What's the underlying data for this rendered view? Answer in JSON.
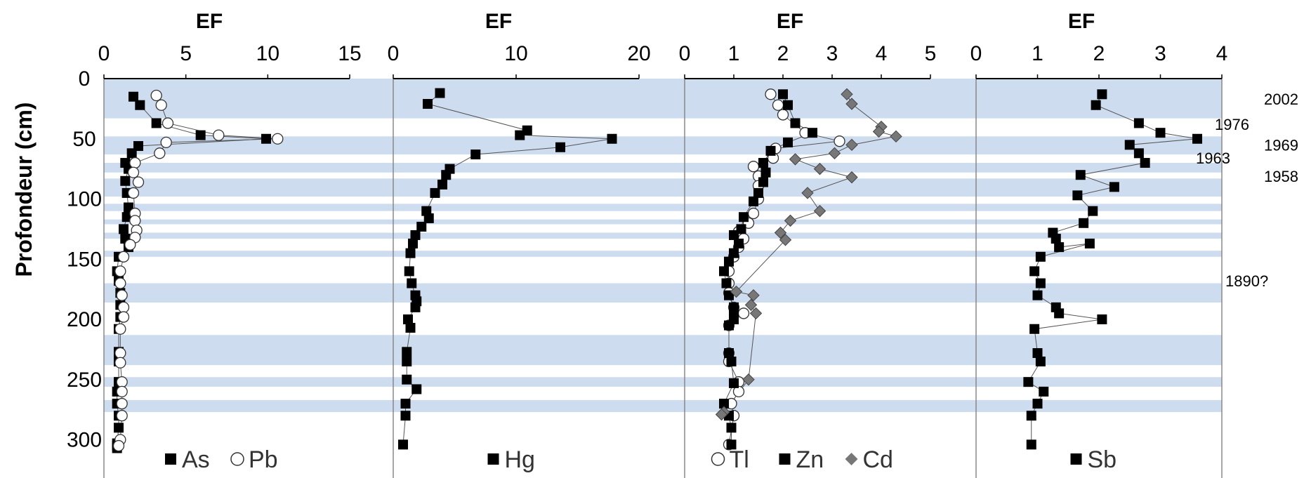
{
  "chart_data": {
    "type": "scatter",
    "ylabel": "Profondeur (cm)",
    "yticks": [
      0,
      50,
      100,
      150,
      200,
      250,
      300
    ],
    "ylim": [
      0,
      310
    ],
    "y_inverted": true,
    "bands_cm": [
      [
        0,
        33
      ],
      [
        48,
        63
      ],
      [
        70,
        78
      ],
      [
        83,
        98
      ],
      [
        104,
        110
      ],
      [
        117,
        121
      ],
      [
        128,
        133
      ],
      [
        143,
        148
      ],
      [
        170,
        186
      ],
      [
        213,
        238
      ],
      [
        248,
        256
      ],
      [
        267,
        277
      ]
    ],
    "date_labels": [
      {
        "text": "2002",
        "depth": 17
      },
      {
        "text": "1976",
        "depth": 38
      },
      {
        "text": "1969",
        "depth": 55
      },
      {
        "text": "1963",
        "depth": 66
      },
      {
        "text": "1958",
        "depth": 81
      },
      {
        "text": "1890?",
        "depth": 168
      }
    ],
    "panels": [
      {
        "xlabel": "EF",
        "xlim": [
          0,
          15
        ],
        "xticks": [
          0,
          5,
          10,
          15
        ],
        "series": [
          {
            "name": "As",
            "marker": "square",
            "color": "#000000",
            "x": [
              1.8,
              2.2,
              3.2,
              5.9,
              9.9,
              2.1,
              1.7,
              1.3,
              1.5,
              1.3,
              1.4,
              1.5,
              1.4,
              1.2,
              1.3,
              1.5,
              0.9,
              0.8,
              0.9,
              1.0,
              1.0,
              1.0,
              0.9,
              0.9,
              0.9,
              0.9,
              0.8,
              0.8,
              0.9,
              0.9,
              0.8,
              0.8,
              0.8
            ],
            "y": [
              15,
              22,
              37,
              47,
              50,
              56,
              62,
              70,
              75,
              85,
              95,
              107,
              115,
              125,
              133,
              140,
              148,
              160,
              168,
              178,
              188,
              198,
              208,
              227,
              235,
              252,
              260,
              270,
              280,
              290,
              303,
              305,
              307
            ]
          },
          {
            "name": "Pb",
            "marker": "circle",
            "color": "#ffffff",
            "x": [
              3.2,
              3.5,
              3.9,
              7.0,
              10.6,
              3.8,
              3.4,
              1.9,
              1.8,
              2.1,
              1.8,
              1.9,
              1.9,
              2.0,
              1.9,
              1.6,
              1.2,
              1.0,
              1.0,
              1.1,
              1.2,
              1.2,
              1.0,
              1.0,
              1.0,
              1.1,
              1.1,
              1.1,
              1.1,
              1.0,
              0.9
            ],
            "y": [
              14,
              22,
              37,
              47,
              50,
              53,
              62,
              70,
              78,
              86,
              95,
              112,
              118,
              126,
              132,
              138,
              148,
              160,
              170,
              180,
              190,
              198,
              208,
              228,
              236,
              252,
              260,
              270,
              280,
              300,
              305
            ]
          }
        ]
      },
      {
        "xlabel": "EF",
        "xlim": [
          0,
          20
        ],
        "xticks": [
          0,
          10,
          20
        ],
        "series": [
          {
            "name": "Hg",
            "marker": "square",
            "color": "#000000",
            "x": [
              3.8,
              2.8,
              10.9,
              10.3,
              17.8,
              13.6,
              6.7,
              4.6,
              4.3,
              4.0,
              3.4,
              2.7,
              2.9,
              2.3,
              1.8,
              1.6,
              1.4,
              1.3,
              1.5,
              1.8,
              1.9,
              1.8,
              1.2,
              1.4,
              1.1,
              1.1,
              1.1,
              1.9,
              1.0,
              1.0,
              0.8
            ],
            "y": [
              12,
              21,
              43,
              47,
              50,
              57,
              63,
              75,
              80,
              88,
              95,
              110,
              116,
              123,
              130,
              137,
              145,
              160,
              170,
              180,
              185,
              190,
              200,
              207,
              227,
              235,
              250,
              258,
              270,
              280,
              304
            ]
          }
        ]
      },
      {
        "xlabel": "EF",
        "xticks": [
          0,
          1,
          2,
          3,
          4,
          5
        ],
        "xlim": [
          0,
          5
        ],
        "series": [
          {
            "name": "Tl",
            "marker": "circle",
            "color": "#ffffff",
            "x": [
              1.75,
              1.9,
              2.0,
              2.45,
              3.15,
              1.85,
              1.8,
              1.4,
              1.5,
              1.5,
              1.5,
              1.4,
              1.3,
              1.1,
              1.2,
              1.1,
              1.0,
              0.9,
              0.9,
              0.9,
              1.0,
              1.2,
              0.9,
              0.9,
              0.9,
              1.1,
              1.1,
              0.95,
              1.0,
              0.9
            ],
            "y": [
              13,
              22,
              30,
              45,
              52,
              58,
              66,
              73,
              81,
              89,
              100,
              112,
              120,
              127,
              133,
              140,
              148,
              160,
              170,
              178,
              190,
              195,
              205,
              228,
              235,
              252,
              260,
              270,
              280,
              304
            ]
          },
          {
            "name": "Zn",
            "marker": "square",
            "color": "#000000",
            "x": [
              2.0,
              2.1,
              2.25,
              2.6,
              2.1,
              1.75,
              1.6,
              1.65,
              1.6,
              1.5,
              1.4,
              1.2,
              1.15,
              1.0,
              1.1,
              1.0,
              0.9,
              0.8,
              0.85,
              0.9,
              1.0,
              1.0,
              1.0,
              0.9,
              0.9,
              0.95,
              1.0,
              0.8,
              0.9,
              0.95,
              0.95
            ],
            "y": [
              13,
              22,
              37,
              45,
              53,
              60,
              70,
              78,
              86,
              95,
              102,
              115,
              125,
              130,
              137,
              145,
              152,
              160,
              170,
              180,
              190,
              198,
              200,
              205,
              228,
              235,
              253,
              270,
              280,
              290,
              304
            ]
          },
          {
            "name": "Cd",
            "marker": "diamond",
            "color": "#777777",
            "x": [
              3.3,
              3.4,
              4.0,
              3.95,
              4.3,
              3.4,
              3.05,
              2.25,
              2.75,
              3.4,
              2.5,
              2.75,
              2.15,
              1.95,
              2.05,
              1.05,
              1.4,
              1.35,
              1.45,
              1.3,
              0.8,
              0.75
            ],
            "y": [
              13,
              21,
              40,
              44,
              48,
              55,
              62,
              67,
              75,
              82,
              95,
              110,
              118,
              128,
              134,
              177,
              180,
              188,
              195,
              250,
              277,
              279
            ]
          }
        ]
      },
      {
        "xlabel": "EF",
        "xlim": [
          0,
          4
        ],
        "xticks": [
          0,
          1,
          2,
          3,
          4
        ],
        "series": [
          {
            "name": "Sb",
            "marker": "square",
            "color": "#000000",
            "x": [
              2.05,
              1.95,
              2.65,
              3.0,
              3.6,
              2.5,
              2.65,
              2.75,
              1.7,
              2.25,
              1.65,
              1.9,
              1.75,
              1.25,
              1.3,
              1.35,
              1.85,
              1.05,
              0.95,
              1.05,
              1.0,
              1.3,
              1.35,
              2.05,
              0.95,
              1.0,
              1.05,
              0.85,
              1.1,
              1.0,
              0.9,
              0.9
            ],
            "y": [
              13,
              22,
              37,
              45,
              50,
              55,
              62,
              70,
              80,
              90,
              97,
              110,
              120,
              128,
              133,
              140,
              137,
              148,
              160,
              170,
              180,
              190,
              195,
              200,
              208,
              228,
              235,
              252,
              260,
              270,
              280,
              304
            ]
          }
        ]
      }
    ]
  }
}
